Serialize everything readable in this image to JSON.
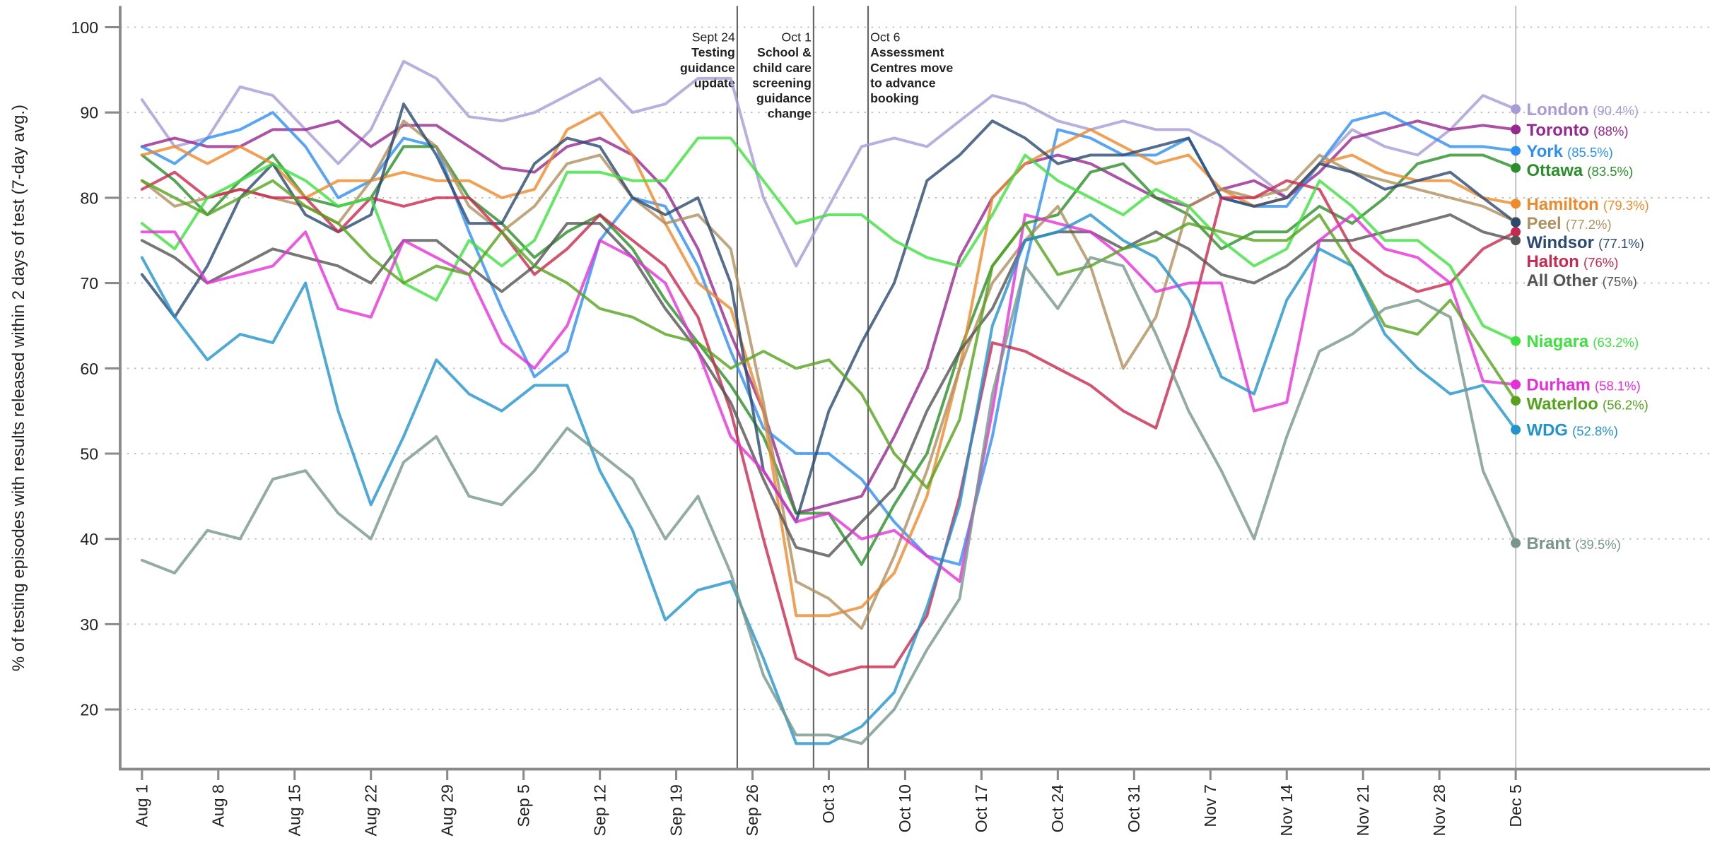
{
  "chart_data": {
    "type": "line",
    "y_label": "% of testing episodes with results released within 2 days of test (7-day avg.)",
    "x": [
      0,
      3,
      6,
      9,
      12,
      15,
      18,
      21,
      24,
      27,
      30,
      33,
      36,
      39,
      42,
      45,
      48,
      51,
      54,
      57,
      60,
      63,
      66,
      69,
      72,
      75,
      78,
      81,
      84,
      87,
      90,
      93,
      96,
      99,
      102,
      105,
      108,
      111,
      114,
      117,
      120,
      123,
      126
    ],
    "xlim": [
      -2,
      144
    ],
    "xticks": [
      {
        "value": 0,
        "label": "Aug 1"
      },
      {
        "value": 7,
        "label": "Aug 8"
      },
      {
        "value": 14,
        "label": "Aug 15"
      },
      {
        "value": 21,
        "label": "Aug 22"
      },
      {
        "value": 28,
        "label": "Aug 29"
      },
      {
        "value": 35,
        "label": "Sep 5"
      },
      {
        "value": 42,
        "label": "Sep 12"
      },
      {
        "value": 49,
        "label": "Sep 19"
      },
      {
        "value": 56,
        "label": "Sep 26"
      },
      {
        "value": 63,
        "label": "Oct 3"
      },
      {
        "value": 70,
        "label": "Oct 10"
      },
      {
        "value": 77,
        "label": "Oct 17"
      },
      {
        "value": 84,
        "label": "Oct 24"
      },
      {
        "value": 91,
        "label": "Oct 31"
      },
      {
        "value": 98,
        "label": "Nov 7"
      },
      {
        "value": 105,
        "label": "Nov 14"
      },
      {
        "value": 112,
        "label": "Nov 21"
      },
      {
        "value": 119,
        "label": "Nov 28"
      },
      {
        "value": 126,
        "label": "Dec 5"
      }
    ],
    "ylim": [
      13,
      102.5
    ],
    "yticks": [
      20,
      30,
      40,
      50,
      60,
      70,
      80,
      90,
      100
    ],
    "grid": true,
    "annotations": [
      {
        "x": 54.6,
        "date": "Sept 24",
        "lines": [
          "Testing",
          "guidance",
          "update"
        ],
        "align": "right"
      },
      {
        "x": 61.6,
        "date": "Oct 1",
        "lines": [
          "School &",
          "child care",
          "screening",
          "guidance",
          "change"
        ],
        "align": "right"
      },
      {
        "x": 66.6,
        "date": "Oct 6",
        "lines": [
          "Assessment",
          "Centres move",
          "to advance",
          "booking"
        ],
        "align": "left"
      }
    ],
    "series": [
      {
        "name": "London",
        "last_label": "(90.4%)",
        "color": "#a89bd6",
        "values": [
          91.5,
          86,
          87,
          93,
          92,
          88,
          84,
          88,
          96,
          94,
          89.5,
          89,
          90,
          92,
          94,
          90,
          91,
          94,
          94,
          80,
          72,
          79,
          86,
          87,
          86,
          89,
          92,
          91,
          89,
          88,
          89,
          88,
          88,
          86,
          83,
          80,
          84,
          88,
          86,
          85,
          88,
          92,
          90.4
        ]
      },
      {
        "name": "Toronto",
        "last_label": "(88%)",
        "color": "#96288f",
        "values": [
          86,
          87,
          86,
          86,
          88,
          88,
          89,
          86,
          88.5,
          88.5,
          86,
          83.5,
          83,
          86,
          87,
          85,
          81,
          74,
          64,
          55,
          43,
          44,
          45,
          52,
          60,
          73,
          80,
          84,
          85,
          84,
          82,
          80,
          79,
          81,
          82,
          80,
          83,
          87,
          88,
          89,
          88,
          88.5,
          88
        ]
      },
      {
        "name": "York",
        "last_label": "(85.5%)",
        "color": "#2f8ff0",
        "values": [
          86,
          84,
          87,
          88,
          90,
          86,
          80,
          82,
          87,
          86,
          76,
          67,
          59,
          62,
          75,
          80,
          79,
          72,
          62,
          53,
          50,
          50,
          47,
          42,
          38,
          37,
          52,
          72,
          88,
          87,
          85,
          85,
          87,
          80,
          79,
          79,
          84,
          89,
          90,
          88,
          86,
          86,
          85.5
        ]
      },
      {
        "name": "Ottawa",
        "last_label": "(83.5%)",
        "color": "#2a8f2a",
        "values": [
          85,
          82,
          78,
          82,
          85,
          80,
          79,
          80,
          86,
          86,
          80,
          77,
          73,
          76,
          78,
          74,
          68,
          63,
          58,
          52,
          43,
          43,
          37,
          44,
          50,
          62,
          72,
          77,
          78,
          83,
          84,
          80,
          78,
          74,
          76,
          76,
          79,
          77,
          80,
          84,
          85,
          85,
          83.5
        ]
      },
      {
        "name": "Hamilton",
        "last_label": "(79.3%)",
        "color": "#ee8a2a",
        "values": [
          85,
          86,
          84,
          86,
          84,
          80,
          82,
          82,
          83,
          82,
          82,
          80,
          81,
          88,
          90,
          85,
          77,
          70,
          67,
          55,
          31,
          31,
          32,
          36,
          45,
          60,
          80,
          84,
          86,
          88,
          86,
          84,
          85,
          81,
          79,
          80,
          84,
          85,
          83,
          82,
          82,
          80,
          79.3
        ]
      },
      {
        "name": "Peel",
        "last_label": "(77.2%)",
        "color": "#b0905e",
        "values": [
          82,
          79,
          80,
          81,
          80,
          79,
          77,
          82,
          89,
          86,
          79,
          76,
          79,
          84,
          85,
          80,
          77,
          78,
          74,
          56,
          35,
          33,
          29.5,
          38,
          48,
          60,
          70,
          75,
          79,
          72,
          60,
          66,
          79,
          81,
          80,
          81,
          85,
          83,
          82,
          81,
          80,
          79,
          77.2
        ]
      },
      {
        "name": "Windsor",
        "last_label": "(77.1%)",
        "color": "#2c4a70",
        "values": [
          71,
          66,
          72,
          80,
          84,
          78,
          76,
          78,
          91,
          85,
          77,
          77,
          84,
          87,
          86,
          80,
          78,
          80,
          70,
          48,
          42,
          55,
          63,
          70,
          82,
          85,
          89,
          87,
          84,
          85,
          85,
          86,
          87,
          80,
          79,
          80,
          84,
          83,
          81,
          82,
          83,
          80,
          77.1
        ]
      },
      {
        "name": "Halton",
        "last_label": "(76%)",
        "color": "#c8284e",
        "values": [
          81,
          83,
          80,
          81,
          80,
          80,
          76,
          80,
          79,
          80,
          80,
          76,
          71,
          74,
          78,
          75,
          72,
          66,
          55,
          40,
          26,
          24,
          25,
          25,
          31,
          45,
          63,
          62,
          60,
          58,
          55,
          53,
          65,
          80,
          80,
          82,
          81,
          74,
          71,
          69,
          70,
          74,
          76
        ]
      },
      {
        "name": "All Other",
        "last_label": "(75%)",
        "color": "#555555",
        "values": [
          75,
          73,
          70,
          72,
          74,
          73,
          72,
          70,
          75,
          75,
          72,
          69,
          72,
          77,
          77,
          73,
          67,
          62,
          56,
          47,
          39,
          38,
          42,
          46,
          55,
          62,
          67,
          75,
          76,
          76,
          74,
          76,
          74,
          71,
          70,
          72,
          75,
          75,
          76,
          77,
          78,
          76,
          75
        ]
      },
      {
        "name": "Niagara",
        "last_label": "(63.2%)",
        "color": "#3fe03f",
        "values": [
          77,
          74,
          80,
          82,
          84,
          82,
          79,
          80,
          70,
          68,
          75,
          72,
          75,
          83,
          83,
          82,
          82,
          87,
          87,
          82,
          77,
          78,
          78,
          75,
          73,
          72,
          78,
          85,
          82,
          80,
          78,
          81,
          79,
          75,
          72,
          74,
          82,
          79,
          75,
          75,
          72,
          65,
          63.2
        ]
      },
      {
        "name": "Durham",
        "last_label": "(58.1%)",
        "color": "#e52fd8",
        "values": [
          76,
          76,
          70,
          71,
          72,
          76,
          67,
          66,
          75,
          73,
          71,
          63,
          60,
          65,
          75,
          73,
          70,
          62,
          52,
          48,
          42,
          43,
          40,
          41,
          38,
          35,
          55,
          78,
          77,
          76,
          73,
          69,
          70,
          70,
          55,
          56,
          75,
          78,
          74,
          73,
          70,
          58.5,
          58.1
        ]
      },
      {
        "name": "Waterloo",
        "last_label": "(56.2%)",
        "color": "#56a21e",
        "values": [
          82,
          80,
          78,
          80,
          82,
          79,
          77,
          73,
          70,
          72,
          71,
          76,
          72,
          70,
          67,
          66,
          64,
          63,
          60,
          62,
          60,
          61,
          57,
          50,
          46,
          54,
          72,
          77,
          71,
          72,
          74,
          75,
          77,
          76,
          75,
          75,
          78,
          72,
          65,
          64,
          68,
          62,
          56.2
        ]
      },
      {
        "name": "WDG",
        "last_label": "(52.8%)",
        "color": "#2293cc",
        "values": [
          73,
          66,
          61,
          64,
          63,
          70,
          55,
          44,
          52,
          61,
          57,
          55,
          58,
          58,
          48,
          41,
          30.5,
          34,
          35,
          26,
          16,
          16,
          18,
          22,
          32,
          44,
          65,
          75,
          76,
          78,
          75,
          73,
          68,
          59,
          57,
          68,
          74,
          72,
          64,
          60,
          57,
          58,
          52.8
        ]
      },
      {
        "name": "Brant",
        "last_label": "(39.5%)",
        "color": "#78978a",
        "values": [
          37.5,
          36,
          41,
          40,
          47,
          48,
          43,
          40,
          49,
          52,
          45,
          44,
          48,
          53,
          50,
          47,
          40,
          45,
          36,
          24,
          17,
          17,
          16,
          20,
          27,
          33,
          57,
          72,
          67,
          73,
          72,
          64,
          55,
          48,
          40,
          52,
          62,
          64,
          67,
          68,
          66,
          48,
          39.5
        ]
      }
    ]
  }
}
